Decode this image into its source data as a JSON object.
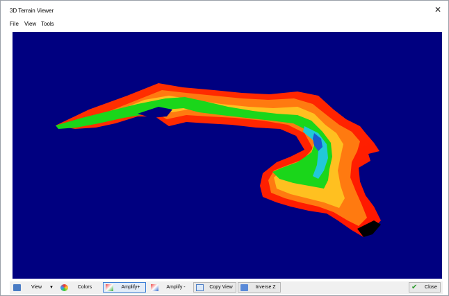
{
  "window": {
    "title": "3D Terrain Viewer"
  },
  "menu": {
    "items": [
      "File",
      "View",
      "Tools"
    ]
  },
  "toolbar": {
    "view_label": "View",
    "colors_label": "Colors",
    "amplify_plus_label": "Amplify+",
    "amplify_minus_label": "Amplify -",
    "copy_view_label": "Copy View",
    "inverse_z_label": "Inverse Z",
    "close_label": "Close"
  },
  "colors": {
    "viewport_bg": "#000080",
    "terrain_low": "#1ad61a",
    "terrain_mid": "#ff8800",
    "terrain_high": "#ff1a00"
  }
}
